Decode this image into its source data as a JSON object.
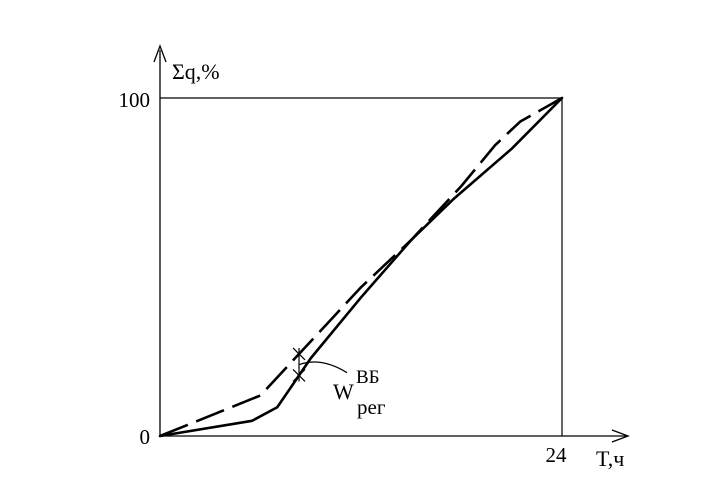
{
  "chart_data": {
    "type": "line",
    "xlabel": "T,ч",
    "ylabel": "Σq,%",
    "xlim": [
      0,
      24
    ],
    "ylim": [
      0,
      100
    ],
    "x_ticks": [
      "0",
      "24"
    ],
    "y_ticks": [
      "0",
      "100"
    ],
    "grid": false,
    "series": [
      {
        "style": "solid",
        "x": [
          0,
          5.5,
          7,
          9,
          12,
          15,
          17.5,
          21,
          24
        ],
        "y": [
          0,
          4.5,
          8.5,
          23,
          41,
          58,
          70,
          85,
          100
        ]
      },
      {
        "style": "dashed",
        "x": [
          0,
          6,
          9,
          12,
          15,
          18,
          20,
          21.5,
          24
        ],
        "y": [
          0,
          12,
          28,
          44,
          58,
          74,
          86,
          93,
          100
        ]
      }
    ],
    "annotation": {
      "base": "W",
      "superscript": "ВБ",
      "subscript": "рег",
      "at_x": 8.3
    }
  }
}
